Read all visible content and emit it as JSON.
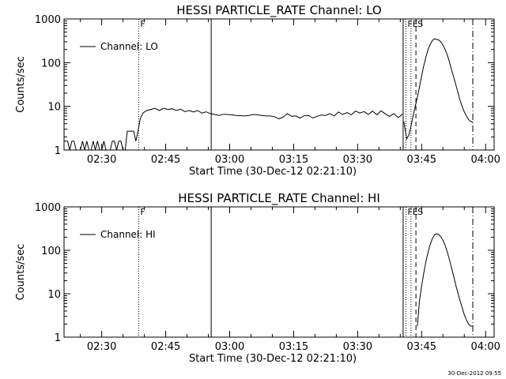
{
  "footer": {
    "timestamp": "30-Dec-2012 09:55"
  },
  "chart_data": [
    {
      "type": "line",
      "title": "HESSI PARTICLE_RATE Channel: LO",
      "xlabel": "Start Time (30-Dec-12 02:21:10)",
      "ylabel": "Counts/sec",
      "yscale": "log",
      "xlim": [
        "02:21:10",
        "04:02:00"
      ],
      "ylim": [
        1,
        1000
      ],
      "x_ticks": [
        "02:30",
        "02:45",
        "03:00",
        "03:15",
        "03:30",
        "03:45",
        "04:00"
      ],
      "y_ticks": [
        "1",
        "10",
        "100",
        "1000"
      ],
      "legend": {
        "position": "top-left",
        "entries": [
          "Channel: LO"
        ]
      },
      "grid": false,
      "markers": [
        {
          "label": "F",
          "time": "02:38:40",
          "style": "dotted"
        },
        {
          "label": "",
          "time": "02:55:40",
          "style": "solid"
        },
        {
          "label": "",
          "time": "03:40:40",
          "style": "solid"
        },
        {
          "label": "F",
          "time": "03:41:20",
          "style": "dotted"
        },
        {
          "label": "E",
          "time": "03:42:30",
          "style": "dotted"
        },
        {
          "label": "S",
          "time": "03:43:40",
          "style": "dashed"
        },
        {
          "label": "",
          "time": "03:57:00",
          "style": "dashdot"
        }
      ],
      "series": [
        {
          "segments": [
            {
              "x": [
                "02:21:10",
                "02:22:00",
                "02:22:30",
                "02:23:00",
                "02:23:30",
                "02:24:00",
                "02:24:30",
                "02:25:00",
                "02:25:30",
                "02:26:00",
                "02:26:30",
                "02:27:00",
                "02:27:30",
                "02:28:00",
                "02:28:30",
                "02:29:00",
                "02:29:30",
                "02:30:00",
                "02:30:30",
                "02:31:00",
                "02:31:30",
                "02:32:00",
                "02:32:30",
                "02:33:00",
                "02:33:30",
                "02:34:00",
                "02:34:30",
                "02:35:00",
                "02:35:30",
                "02:36:00",
                "02:36:30",
                "02:37:00",
                "02:37:30",
                "02:38:00",
                "02:38:30",
                "02:39:00",
                "02:39:40",
                "02:40:30",
                "02:41:30",
                "02:42:30",
                "02:43:30",
                "02:44:30",
                "02:45:30",
                "02:46:30",
                "02:47:30",
                "02:48:30",
                "02:49:30",
                "02:50:30",
                "02:51:30",
                "02:52:30",
                "02:53:30",
                "02:54:30",
                "02:55:30",
                "02:56:30",
                "02:57:30",
                "02:58:30",
                "02:59:30",
                "03:00:30",
                "03:01:30",
                "03:02:30",
                "03:03:30",
                "03:04:30",
                "03:05:30",
                "03:06:30",
                "03:07:30",
                "03:08:30",
                "03:09:30",
                "03:10:30",
                "03:11:30",
                "03:12:30",
                "03:13:30",
                "03:14:30",
                "03:15:30",
                "03:16:30",
                "03:17:30",
                "03:18:30",
                "03:19:30",
                "03:20:30",
                "03:21:30",
                "03:22:30",
                "03:23:30",
                "03:24:30",
                "03:25:30",
                "03:26:30",
                "03:27:30",
                "03:28:30",
                "03:29:30",
                "03:30:30",
                "03:31:30",
                "03:32:30",
                "03:33:30",
                "03:34:30",
                "03:35:30",
                "03:36:30",
                "03:37:30",
                "03:38:30",
                "03:39:30",
                "03:40:30"
              ],
              "y": [
                1.6,
                1.6,
                1,
                1.6,
                1.6,
                1,
                1,
                1,
                1.6,
                1,
                1.6,
                1,
                1,
                1.6,
                1,
                1.6,
                1,
                1,
                1.6,
                1,
                1,
                1,
                1.6,
                1.6,
                1,
                1.6,
                1.6,
                1,
                1,
                2.7,
                2.7,
                2.7,
                2.7,
                1.6,
                2.7,
                5,
                7,
                8,
                8.5,
                9,
                8,
                9,
                8.5,
                8.8,
                8,
                8.6,
                7.6,
                8,
                7.4,
                8,
                7,
                7.5,
                6.8,
                6.5,
                6.2,
                6.6,
                6.5,
                6.4,
                6.2,
                6.1,
                6,
                6.2,
                6.5,
                6.4,
                6.2,
                6,
                6,
                5.8,
                5.2,
                5.6,
                6.8,
                5.9,
                6,
                5.4,
                6.1,
                6.2,
                5.4,
                5.9,
                6.3,
                6.2,
                6.8,
                6,
                7.4,
                6.5,
                7.2,
                6.4,
                7.8,
                7,
                7.6,
                6.5,
                7.8,
                6.4,
                7.9,
                6.7,
                5.9,
                6.8,
                5.5,
                6.6
              ]
            },
            {
              "x": [
                "03:40:50",
                "03:41:30",
                "03:42:00",
                "03:42:30",
                "03:43:00",
                "03:43:30",
                "03:44:00",
                "03:44:30",
                "03:45:00",
                "03:45:30",
                "03:46:00",
                "03:46:30",
                "03:47:00",
                "03:47:30",
                "03:48:00",
                "03:48:30",
                "03:49:00",
                "03:49:30",
                "03:50:00",
                "03:50:30",
                "03:51:00",
                "03:51:30",
                "03:52:00",
                "03:52:30",
                "03:53:00",
                "03:53:30",
                "03:54:00",
                "03:54:30",
                "03:55:00",
                "03:55:30",
                "03:56:00",
                "03:56:30",
                "03:57:00"
              ],
              "y": [
                4.5,
                1.8,
                2.2,
                3.5,
                6,
                10,
                16,
                28,
                50,
                85,
                135,
                200,
                260,
                320,
                350,
                340,
                330,
                300,
                250,
                200,
                150,
                105,
                70,
                48,
                32,
                21,
                14,
                10,
                7.5,
                6,
                5,
                4.5,
                4.4
              ]
            }
          ]
        }
      ]
    },
    {
      "type": "line",
      "title": "HESSI PARTICLE_RATE Channel: HI",
      "xlabel": "Start Time (30-Dec-12 02:21:10)",
      "ylabel": "Counts/sec",
      "yscale": "log",
      "xlim": [
        "02:21:10",
        "04:02:00"
      ],
      "ylim": [
        1,
        1000
      ],
      "x_ticks": [
        "02:30",
        "02:45",
        "03:00",
        "03:15",
        "03:30",
        "03:45",
        "04:00"
      ],
      "y_ticks": [
        "1",
        "10",
        "100",
        "1000"
      ],
      "legend": {
        "position": "top-left",
        "entries": [
          "Channel: HI"
        ]
      },
      "grid": false,
      "markers": [
        {
          "label": "F",
          "time": "02:38:40",
          "style": "dotted"
        },
        {
          "label": "",
          "time": "02:55:40",
          "style": "solid"
        },
        {
          "label": "",
          "time": "03:40:40",
          "style": "solid"
        },
        {
          "label": "F",
          "time": "03:41:20",
          "style": "dotted"
        },
        {
          "label": "E",
          "time": "03:42:30",
          "style": "dotted"
        },
        {
          "label": "S",
          "time": "03:43:40",
          "style": "dashed"
        },
        {
          "label": "",
          "time": "03:57:00",
          "style": "dashdot"
        }
      ],
      "series": [
        {
          "segments": [
            {
              "x": [
                "03:44:00",
                "03:44:30",
                "03:45:00",
                "03:45:30",
                "03:46:00",
                "03:46:30",
                "03:47:00",
                "03:47:30",
                "03:48:00",
                "03:48:30",
                "03:49:00",
                "03:49:30",
                "03:50:00",
                "03:50:30",
                "03:51:00",
                "03:51:30",
                "03:52:00",
                "03:52:30",
                "03:53:00",
                "03:53:30",
                "03:54:00",
                "03:54:30",
                "03:55:00",
                "03:55:30",
                "03:56:00",
                "03:56:30",
                "03:57:00"
              ],
              "y": [
                1.8,
                7,
                15,
                30,
                55,
                90,
                135,
                185,
                225,
                240,
                230,
                205,
                170,
                130,
                92,
                62,
                40,
                26,
                16,
                10.5,
                7,
                4.8,
                3.3,
                2.5,
                2,
                1.8,
                1.8
              ]
            }
          ]
        }
      ]
    }
  ]
}
